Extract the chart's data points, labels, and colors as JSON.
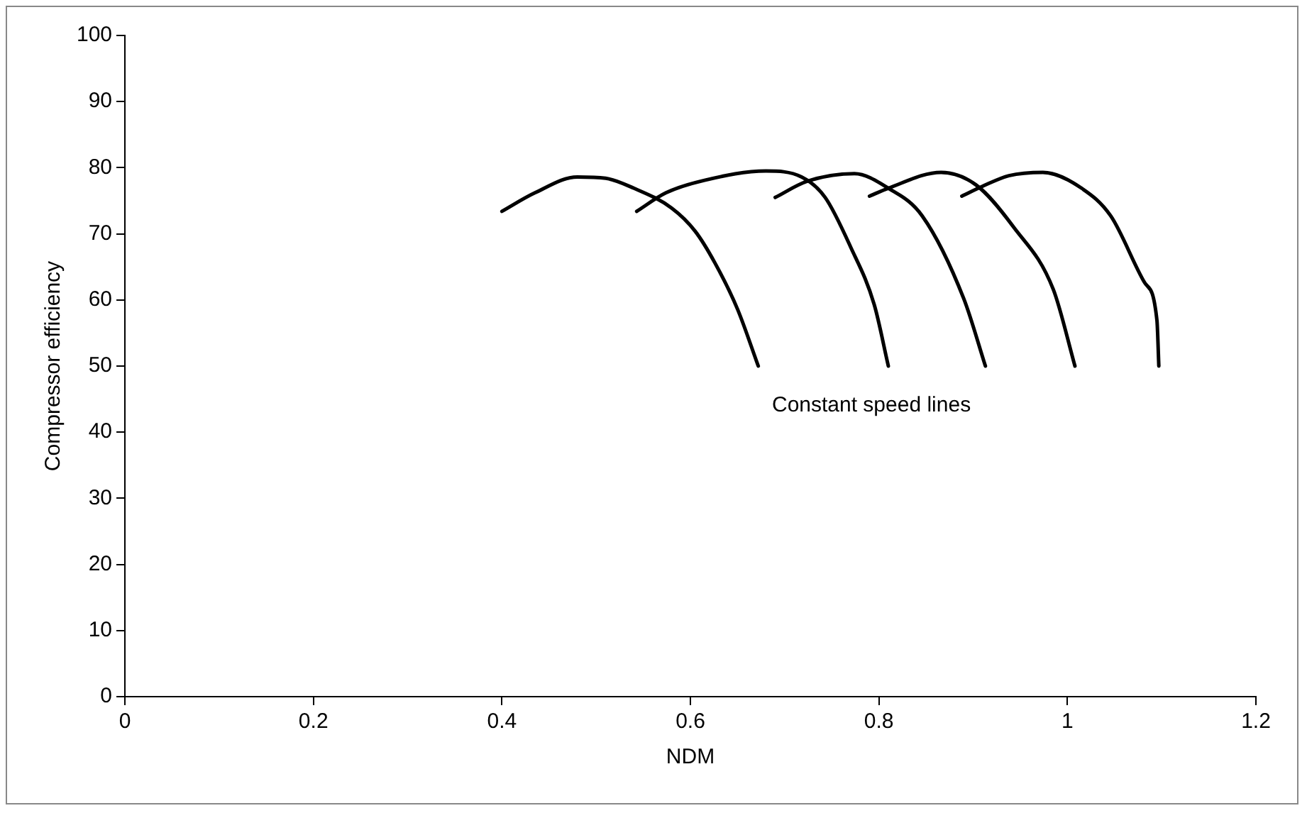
{
  "chart_data": {
    "type": "line",
    "xlabel": "NDM",
    "ylabel": "Compressor efficiency",
    "xlim": [
      0,
      1.2
    ],
    "xticks": [
      0,
      0.2,
      0.4,
      0.6,
      0.8,
      1,
      1.2
    ],
    "ylim": [
      0,
      100
    ],
    "yticks": [
      0,
      10,
      20,
      30,
      40,
      50,
      60,
      70,
      80,
      90,
      100
    ],
    "grid": false,
    "legend": false,
    "marker": "none",
    "line_style": "solid",
    "series": [
      {
        "color": "#000000",
        "x": [
          0.4,
          0.435,
          0.48,
          0.51,
          0.54,
          0.58,
          0.605,
          0.626,
          0.65,
          0.672
        ],
        "values": [
          73.4,
          76.2,
          78.6,
          78.4,
          76.9,
          73.9,
          70.4,
          65.6,
          58.6,
          50
        ]
      },
      {
        "color": "#000000",
        "x": [
          0.543,
          0.574,
          0.615,
          0.68,
          0.718,
          0.743,
          0.77,
          0.795,
          0.81
        ],
        "values": [
          73.4,
          76.2,
          78.1,
          79.5,
          78.6,
          75.5,
          68,
          59.3,
          50
        ]
      },
      {
        "color": "#000000",
        "x": [
          0.69,
          0.723,
          0.774,
          0.81,
          0.846,
          0.89,
          0.913
        ],
        "values": [
          75.5,
          77.9,
          79.1,
          76.9,
          72.7,
          60.2,
          50
        ]
      },
      {
        "color": "#000000",
        "x": [
          0.79,
          0.81,
          0.866,
          0.903,
          0.943,
          0.985,
          1.008
        ],
        "values": [
          75.7,
          76.9,
          79.3,
          77.4,
          71,
          61.6,
          50
        ]
      },
      {
        "color": "#000000",
        "x": [
          0.888,
          0.91,
          0.938,
          0.974,
          1.015,
          1.046,
          1.082,
          1.095,
          1.097
        ],
        "values": [
          75.7,
          77.2,
          78.8,
          79.3,
          76.9,
          72.7,
          62.6,
          56.9,
          50
        ]
      }
    ],
    "annotations": [
      "Constant speed lines"
    ]
  }
}
